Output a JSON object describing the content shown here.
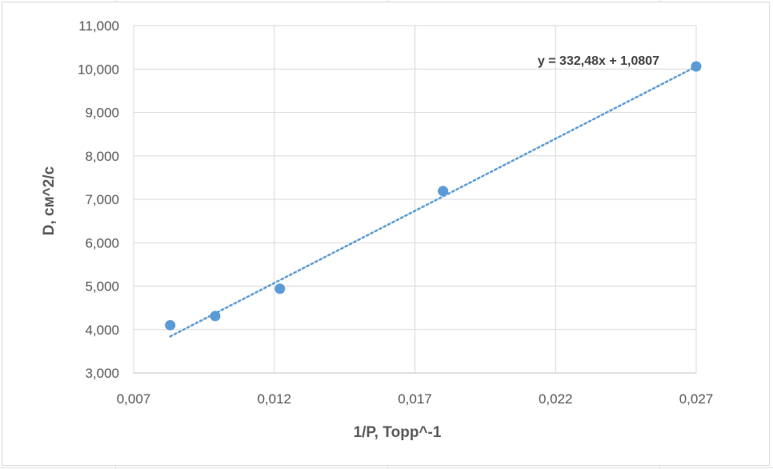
{
  "chart_data": {
    "type": "scatter",
    "title": "",
    "xlabel": "1/P, Торр^-1",
    "ylabel": "D, см^2/с",
    "xlim": [
      0.007,
      0.027
    ],
    "ylim": [
      3,
      11
    ],
    "x_ticks": [
      "0,007",
      "0,012",
      "0,017",
      "0,022",
      "0,027"
    ],
    "y_ticks": [
      "3,000",
      "4,000",
      "5,000",
      "6,000",
      "7,000",
      "8,000",
      "9,000",
      "10,000",
      "11,000"
    ],
    "grid": true,
    "legend": "none",
    "series": [
      {
        "color": "#5b9bd5",
        "x": [
          0.0083,
          0.0099,
          0.0122,
          0.018,
          0.027
        ],
        "y": [
          4.1,
          4.31,
          4.94,
          7.19,
          10.06
        ]
      }
    ],
    "trendline": {
      "type": "linear",
      "style": "dotted",
      "color": "#5b9bd5",
      "slope": 332.48,
      "intercept": 1.0807,
      "x_range": [
        0.0083,
        0.027
      ],
      "equation_label": "y = 332,48x + 1,0807"
    }
  }
}
